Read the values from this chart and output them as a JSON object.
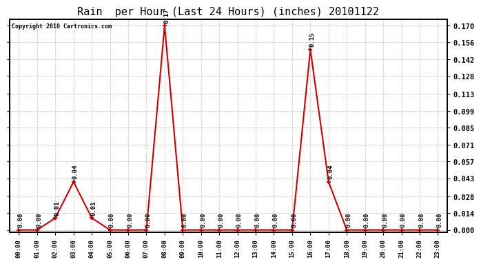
{
  "title": "Rain  per Hour (Last 24 Hours) (inches) 20101122",
  "copyright": "Copyright 2010 Cartronics.com",
  "hours": [
    "00:00",
    "01:00",
    "02:00",
    "03:00",
    "04:00",
    "05:00",
    "06:00",
    "07:00",
    "08:00",
    "09:00",
    "10:00",
    "11:00",
    "12:00",
    "13:00",
    "14:00",
    "15:00",
    "16:00",
    "17:00",
    "18:00",
    "19:00",
    "20:00",
    "21:00",
    "22:00",
    "23:00"
  ],
  "values": [
    0.0,
    0.0,
    0.01,
    0.04,
    0.01,
    0.0,
    0.0,
    0.0,
    0.17,
    0.0,
    0.0,
    0.0,
    0.0,
    0.0,
    0.0,
    0.0,
    0.15,
    0.04,
    0.0,
    0.0,
    0.0,
    0.0,
    0.0,
    0.0
  ],
  "line_color": "#cc0000",
  "marker_color": "#cc0000",
  "background_color": "#ffffff",
  "grid_color": "#c8c8c8",
  "title_fontsize": 11,
  "annotation_fontsize": 6.5,
  "yticks": [
    0.0,
    0.014,
    0.028,
    0.043,
    0.057,
    0.071,
    0.085,
    0.099,
    0.113,
    0.128,
    0.142,
    0.156,
    0.17
  ],
  "ylim_min": -0.002,
  "ylim_max": 0.175,
  "fig_width": 6.9,
  "fig_height": 3.75,
  "dpi": 100
}
